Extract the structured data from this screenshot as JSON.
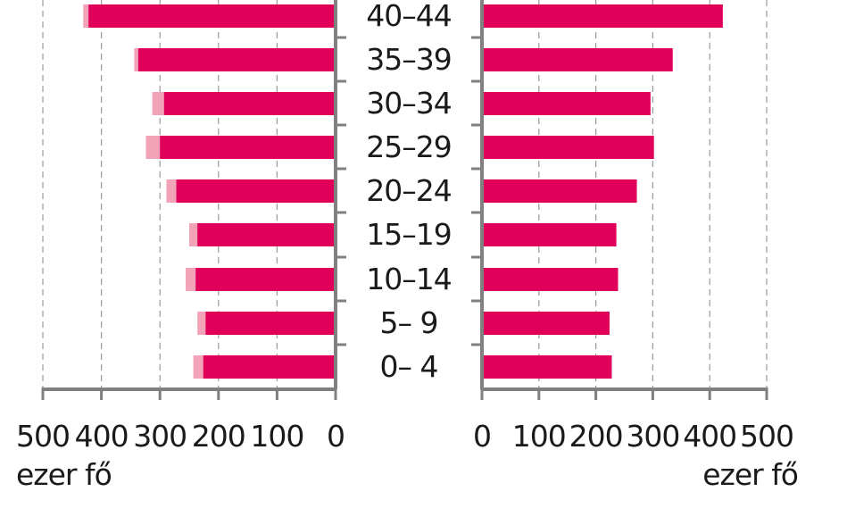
{
  "chart_data": {
    "type": "bar",
    "orientation": "horizontal",
    "categories": [
      "40–44",
      "35–39",
      "30–34",
      "25–29",
      "20–24",
      "15–19",
      "10–14",
      "5– 9",
      "0– 4"
    ],
    "series": [
      {
        "side": "left",
        "color": "#e0005a",
        "values": [
          422,
          337,
          293,
          300,
          272,
          236,
          239,
          222,
          226
        ]
      },
      {
        "side": "left",
        "color": "#f2a3b8",
        "values": [
          431,
          344,
          313,
          324,
          289,
          250,
          256,
          236,
          243
        ]
      },
      {
        "side": "right",
        "color": "#e0005a",
        "values": [
          423,
          335,
          296,
          302,
          272,
          236,
          239,
          224,
          228
        ]
      }
    ],
    "left_axis": {
      "ticks": [
        500,
        400,
        300,
        200,
        100,
        0
      ],
      "range": [
        0,
        500
      ],
      "unit": "ezer fő",
      "direction": "reversed"
    },
    "right_axis": {
      "ticks": [
        0,
        100,
        200,
        300,
        400,
        500
      ],
      "range": [
        0,
        500
      ],
      "unit": "ezer fő"
    },
    "grid": true
  }
}
